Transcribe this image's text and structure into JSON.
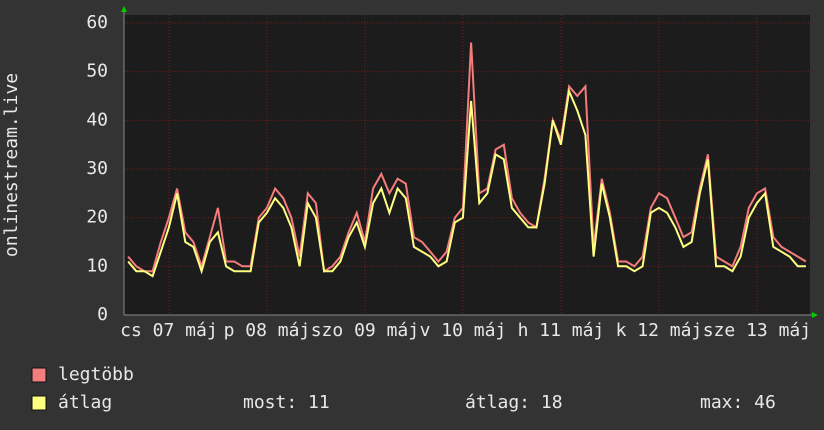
{
  "chart_data": {
    "type": "line",
    "y_label": "onlinestream.live",
    "categories": [
      null,
      null,
      null,
      null,
      null,
      "cs 07 máj",
      null,
      null,
      null,
      null,
      null,
      null,
      null,
      null,
      null,
      null,
      null,
      "p 08 máj",
      null,
      null,
      null,
      null,
      null,
      null,
      null,
      null,
      null,
      null,
      null,
      "szo 09 máj",
      null,
      null,
      null,
      null,
      null,
      null,
      null,
      null,
      null,
      null,
      null,
      "v 10 máj",
      null,
      null,
      null,
      null,
      null,
      null,
      null,
      null,
      null,
      null,
      null,
      "h 11 máj",
      null,
      null,
      null,
      null,
      null,
      null,
      null,
      null,
      null,
      null,
      null,
      "k 12 máj",
      null,
      null,
      null,
      null,
      null,
      null,
      null,
      null,
      null,
      null,
      null,
      "sze 13 máj",
      null,
      null,
      null,
      null,
      null,
      null
    ],
    "series": [
      {
        "name": "legtöbb",
        "color": "#f47c7c",
        "values": [
          12,
          10,
          9,
          9,
          15,
          20,
          26,
          17,
          15,
          10,
          16,
          22,
          11,
          11,
          10,
          10,
          20,
          22,
          26,
          24,
          20,
          12,
          25,
          23,
          9,
          10,
          12,
          17,
          21,
          15,
          26,
          29,
          25,
          28,
          27,
          16,
          15,
          13,
          11,
          13,
          20,
          22,
          56,
          25,
          26,
          34,
          35,
          24,
          21,
          19,
          18,
          28,
          40,
          36,
          47,
          45,
          47,
          14,
          28,
          21,
          11,
          11,
          10,
          12,
          22,
          25,
          24,
          20,
          16,
          17,
          26,
          33,
          12,
          11,
          10,
          14,
          22,
          25,
          26,
          16,
          14,
          13,
          12,
          11
        ]
      },
      {
        "name": "átlag",
        "color": "#ffff80",
        "values": [
          11,
          9,
          9,
          8,
          13,
          18,
          25,
          15,
          14,
          9,
          15,
          17,
          10,
          9,
          9,
          9,
          19,
          21,
          24,
          22,
          18,
          10,
          23,
          20,
          9,
          9,
          11,
          16,
          19,
          14,
          23,
          26,
          21,
          26,
          24,
          14,
          13,
          12,
          10,
          11,
          19,
          20,
          44,
          23,
          25,
          33,
          32,
          22,
          20,
          18,
          18,
          27,
          40,
          35,
          46,
          42,
          37,
          12,
          27,
          20,
          10,
          10,
          9,
          10,
          21,
          22,
          21,
          18,
          14,
          15,
          25,
          32,
          10,
          10,
          9,
          12,
          20,
          23,
          25,
          14,
          13,
          12,
          10,
          10
        ]
      }
    ],
    "stats": [
      "most: 11",
      "átlag: 18",
      "max: 46"
    ],
    "ylim": [
      0,
      60
    ],
    "yticks": [
      0,
      10,
      20,
      30,
      40,
      50,
      60
    ],
    "grid": true
  }
}
